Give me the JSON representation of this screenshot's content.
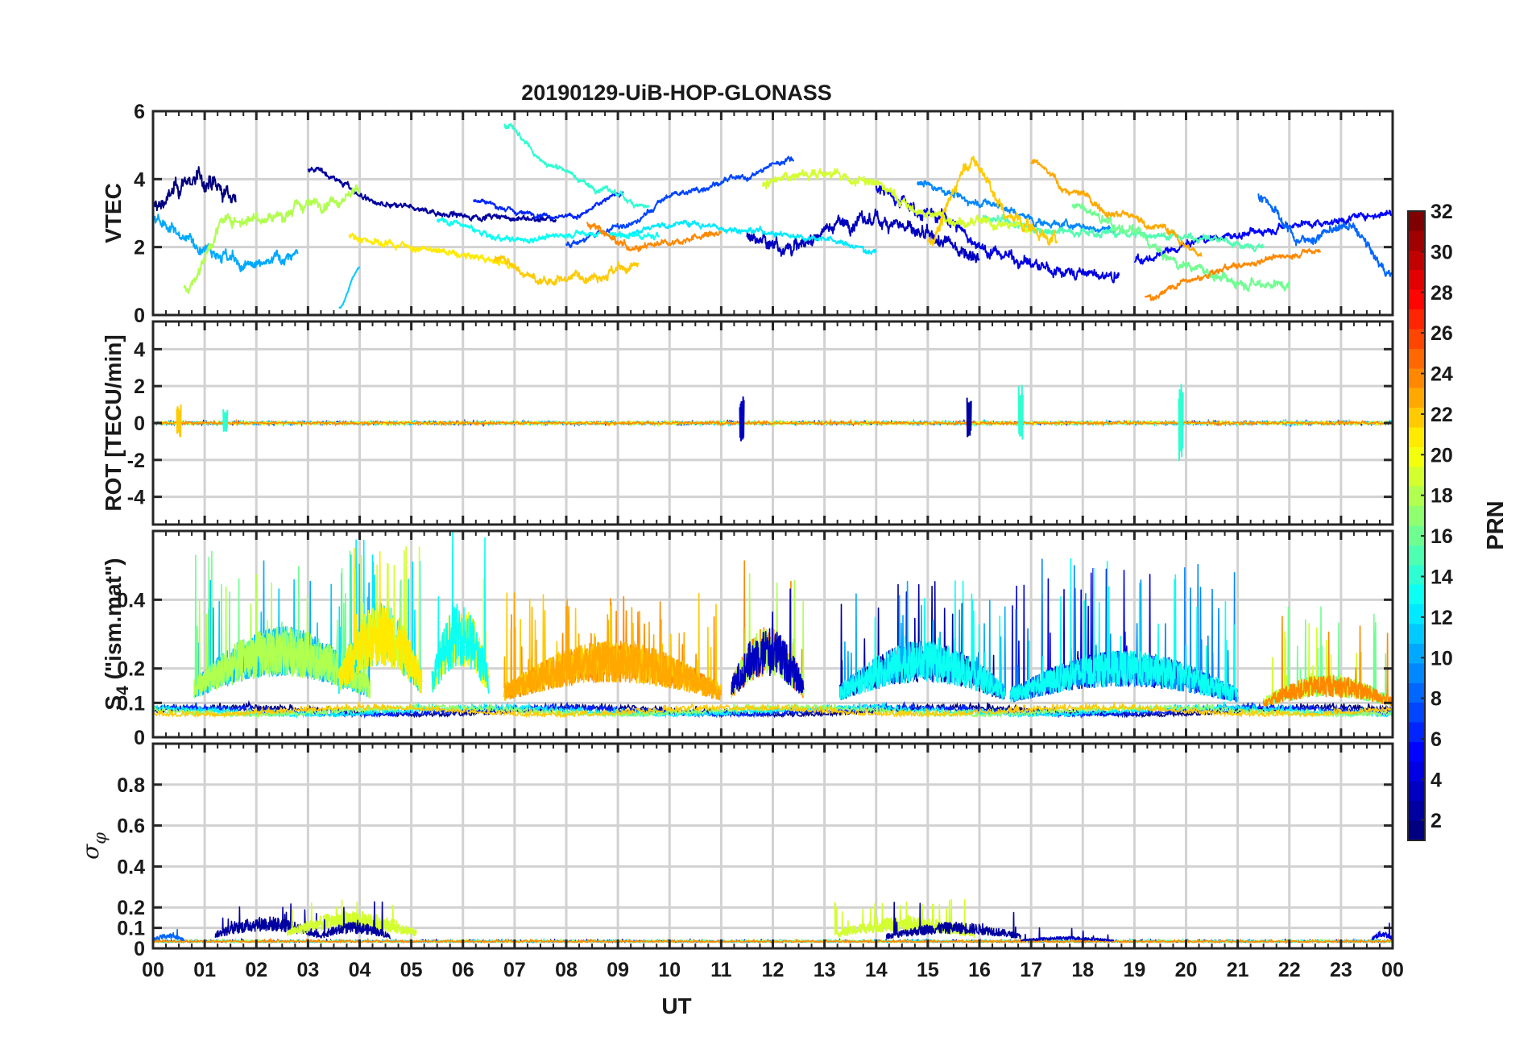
{
  "chart_data": {
    "type": "line",
    "title": "20190129-UiB-HOP-GLONASS",
    "xlabel": "UT",
    "x_ticks": [
      "00",
      "01",
      "02",
      "03",
      "04",
      "05",
      "06",
      "07",
      "08",
      "09",
      "10",
      "11",
      "12",
      "13",
      "14",
      "15",
      "16",
      "17",
      "18",
      "19",
      "20",
      "21",
      "22",
      "23",
      "00"
    ],
    "xlim": [
      0,
      24
    ],
    "panels": [
      {
        "id": "vtec",
        "ylabel": "VTEC",
        "ylim": [
          0,
          6
        ],
        "yticks": [
          0,
          2,
          4,
          6
        ],
        "ytick_labels": [
          "0",
          "2",
          "4",
          "6"
        ],
        "series": [
          {
            "name": "PRN 1",
            "prn": 1,
            "start": 0.0,
            "end": 1.6,
            "base": [
              3.2,
              4.0,
              3.5
            ],
            "noise": 0.35
          },
          {
            "name": "PRN 2",
            "prn": 2,
            "start": 3.0,
            "end": 7.8,
            "base": [
              4.3,
              3.2,
              2.9,
              2.8
            ],
            "noise": 0.12
          },
          {
            "name": "PRN 3",
            "prn": 3,
            "start": 11.5,
            "end": 16.0,
            "base": [
              2.3,
              2.0,
              2.7,
              2.8,
              2.2,
              1.8
            ],
            "noise": 0.3
          },
          {
            "name": "PRN 4",
            "prn": 4,
            "start": 14.0,
            "end": 18.7,
            "base": [
              3.7,
              2.9,
              1.8,
              1.3,
              1.1
            ],
            "noise": 0.25
          },
          {
            "name": "PRN 5",
            "prn": 5,
            "start": 19.0,
            "end": 24.0,
            "base": [
              1.6,
              2.3,
              2.7,
              3.0
            ],
            "noise": 0.15
          },
          {
            "name": "PRN 6",
            "prn": 6,
            "start": 6.2,
            "end": 9.1,
            "base": [
              3.4,
              3.0,
              2.9,
              3.6
            ],
            "noise": 0.1
          },
          {
            "name": "PRN 7",
            "prn": 7,
            "start": 8.0,
            "end": 12.4,
            "base": [
              2.1,
              2.6,
              3.6,
              4.0,
              4.6
            ],
            "noise": 0.12
          },
          {
            "name": "PRN 8",
            "prn": 8,
            "start": 21.4,
            "end": 24.0,
            "base": [
              3.5,
              2.2,
              2.6,
              1.2
            ],
            "noise": 0.2
          },
          {
            "name": "PRN 9",
            "prn": 9,
            "start": 14.8,
            "end": 18.6,
            "base": [
              3.9,
              3.3,
              2.7,
              2.5
            ],
            "noise": 0.15
          },
          {
            "name": "PRN 10",
            "prn": 10,
            "start": 0.0,
            "end": 2.8,
            "base": [
              2.8,
              2.1,
              1.4,
              1.8
            ],
            "noise": 0.25
          },
          {
            "name": "PRN 11",
            "prn": 11,
            "start": 3.6,
            "end": 4.0,
            "base": [
              0.2,
              1.4
            ],
            "noise": 0.05
          },
          {
            "name": "PRN 12",
            "prn": 12,
            "start": 9.0,
            "end": 14.0,
            "base": [
              2.4,
              2.7,
              2.5,
              2.3,
              1.9
            ],
            "noise": 0.12
          },
          {
            "name": "PRN 13",
            "prn": 13,
            "start": 5.5,
            "end": 9.8,
            "base": [
              2.8,
              2.2,
              2.4,
              2.3
            ],
            "noise": 0.12
          },
          {
            "name": "PRN 14",
            "prn": 14,
            "start": 6.8,
            "end": 9.6,
            "base": [
              5.6,
              4.4,
              3.7,
              3.2
            ],
            "noise": 0.12
          },
          {
            "name": "PRN 15",
            "prn": 15,
            "start": 16.0,
            "end": 21.5,
            "base": [
              2.8,
              2.5,
              2.4,
              2.3,
              2.0
            ],
            "noise": 0.15
          },
          {
            "name": "PRN 16",
            "prn": 16,
            "start": 17.8,
            "end": 22.0,
            "base": [
              3.2,
              2.5,
              1.5,
              1.0,
              0.9
            ],
            "noise": 0.2
          },
          {
            "name": "PRN 18",
            "prn": 18,
            "start": 0.6,
            "end": 4.0,
            "base": [
              0.8,
              2.8,
              2.9,
              3.3,
              3.6
            ],
            "noise": 0.25
          },
          {
            "name": "PRN 19",
            "prn": 19,
            "start": 11.8,
            "end": 17.0,
            "base": [
              3.9,
              4.2,
              3.9,
              3.0,
              2.7,
              2.6
            ],
            "noise": 0.2
          },
          {
            "name": "PRN 21",
            "prn": 21,
            "start": 3.8,
            "end": 7.0,
            "base": [
              2.3,
              2.1,
              1.9,
              1.7,
              1.5
            ],
            "noise": 0.15
          },
          {
            "name": "PRN 22",
            "prn": 22,
            "start": 15.0,
            "end": 17.5,
            "base": [
              2.2,
              4.5,
              2.8,
              2.2
            ],
            "noise": 0.25
          },
          {
            "name": "PRN 22",
            "prn": 22,
            "start": 6.6,
            "end": 9.4,
            "base": [
              1.7,
              1.0,
              1.2,
              1.4
            ],
            "noise": 0.2
          },
          {
            "name": "PRN 23",
            "prn": 23,
            "start": 17.0,
            "end": 20.3,
            "base": [
              4.5,
              3.6,
              3.0,
              2.6,
              1.8
            ],
            "noise": 0.15
          },
          {
            "name": "PRN 24",
            "prn": 24,
            "start": 8.4,
            "end": 11.0,
            "base": [
              2.7,
              2.0,
              2.2,
              2.4
            ],
            "noise": 0.15
          },
          {
            "name": "PRN 24",
            "prn": 24,
            "start": 19.2,
            "end": 22.6,
            "base": [
              0.5,
              1.0,
              1.4,
              1.7,
              1.9
            ],
            "noise": 0.12
          }
        ]
      },
      {
        "id": "rot",
        "ylabel": "ROT [TECU/min]",
        "ylim": [
          -5.5,
          5.5
        ],
        "yticks": [
          -4,
          -2,
          0,
          2,
          4
        ],
        "ytick_labels": [
          "-4",
          "-2",
          "0",
          "2",
          "4"
        ],
        "noise_level": 0.12,
        "spikes": [
          {
            "t": 0.5,
            "min": -0.8,
            "max": 1.1,
            "prn": 22
          },
          {
            "t": 1.4,
            "min": -0.5,
            "max": 0.9,
            "prn": 14
          },
          {
            "t": 11.4,
            "min": -1.0,
            "max": 1.6,
            "prn": 3
          },
          {
            "t": 15.8,
            "min": -0.8,
            "max": 1.4,
            "prn": 2
          },
          {
            "t": 16.8,
            "min": -1.0,
            "max": 2.1,
            "prn": 14
          },
          {
            "t": 19.9,
            "min": -2.2,
            "max": 2.3,
            "prn": 14
          }
        ]
      },
      {
        "id": "s4",
        "ylabel": "S4 (\"ism.mat\")",
        "ylabel_main": "S",
        "ylabel_sub": "4",
        "ylabel_rest": " (\"ism.mat\")",
        "ylim": [
          0,
          0.6
        ],
        "yticks": [
          0,
          0.1,
          0.2,
          0.4
        ],
        "ytick_labels": [
          "0",
          "0.1",
          "0.2",
          "0.4"
        ],
        "baseline": 0.07,
        "activity": [
          {
            "start": 0.8,
            "end": 4.2,
            "level": 0.25,
            "peak": 0.55,
            "prns": [
              10,
              11,
              16,
              18
            ]
          },
          {
            "start": 3.6,
            "end": 5.2,
            "level": 0.3,
            "peak": 0.58,
            "prns": [
              12,
              19,
              21
            ]
          },
          {
            "start": 5.4,
            "end": 6.5,
            "level": 0.3,
            "peak": 0.6,
            "prns": [
              20,
              13
            ]
          },
          {
            "start": 6.8,
            "end": 11.0,
            "level": 0.22,
            "peak": 0.42,
            "prns": [
              24,
              22,
              23
            ]
          },
          {
            "start": 11.2,
            "end": 12.6,
            "level": 0.25,
            "peak": 0.55,
            "prns": [
              24,
              18,
              3
            ]
          },
          {
            "start": 13.3,
            "end": 16.5,
            "level": 0.22,
            "peak": 0.46,
            "prns": [
              2,
              10,
              13
            ]
          },
          {
            "start": 16.6,
            "end": 21.0,
            "level": 0.2,
            "peak": 0.52,
            "prns": [
              4,
              9,
              13
            ]
          },
          {
            "start": 21.5,
            "end": 24.0,
            "level": 0.15,
            "peak": 0.38,
            "prns": [
              16,
              19,
              24
            ]
          }
        ]
      },
      {
        "id": "sigma_phi",
        "ylabel": "σ_φ",
        "ylabel_main": "σ",
        "ylabel_sub": "φ",
        "ylim": [
          0,
          1
        ],
        "yticks": [
          0,
          0.1,
          0.2,
          0.4,
          0.6,
          0.8
        ],
        "ytick_labels": [
          "0",
          "0.1",
          "0.2",
          "0.4",
          "0.6",
          "0.8"
        ],
        "baseline": 0.03,
        "activity": [
          {
            "start": 1.2,
            "end": 3.2,
            "level": 0.12,
            "peak": 0.22,
            "prn": 2
          },
          {
            "start": 2.6,
            "end": 5.1,
            "level": 0.14,
            "peak": 0.27,
            "prn": 19
          },
          {
            "start": 3.2,
            "end": 4.6,
            "level": 0.1,
            "peak": 0.23,
            "prn": 2
          },
          {
            "start": 13.2,
            "end": 15.9,
            "level": 0.12,
            "peak": 0.25,
            "prn": 19
          },
          {
            "start": 14.2,
            "end": 16.8,
            "level": 0.1,
            "peak": 0.24,
            "prn": 2
          },
          {
            "start": 16.8,
            "end": 18.6,
            "level": 0.05,
            "peak": 0.1,
            "prn": 3
          },
          {
            "start": 0.0,
            "end": 0.6,
            "level": 0.06,
            "peak": 0.1,
            "prn": 8
          },
          {
            "start": 23.6,
            "end": 24.0,
            "level": 0.07,
            "peak": 0.2,
            "prn": 4
          }
        ]
      }
    ],
    "colorbar": {
      "label": "PRN",
      "range": [
        1,
        32
      ],
      "ticks": [
        2,
        4,
        6,
        8,
        10,
        12,
        14,
        16,
        18,
        20,
        22,
        24,
        26,
        28,
        30,
        32
      ],
      "tick_labels": [
        "2",
        "4",
        "6",
        "8",
        "10",
        "12",
        "14",
        "16",
        "18",
        "20",
        "22",
        "24",
        "26",
        "28",
        "30",
        "32"
      ],
      "colormap": "jet"
    }
  }
}
